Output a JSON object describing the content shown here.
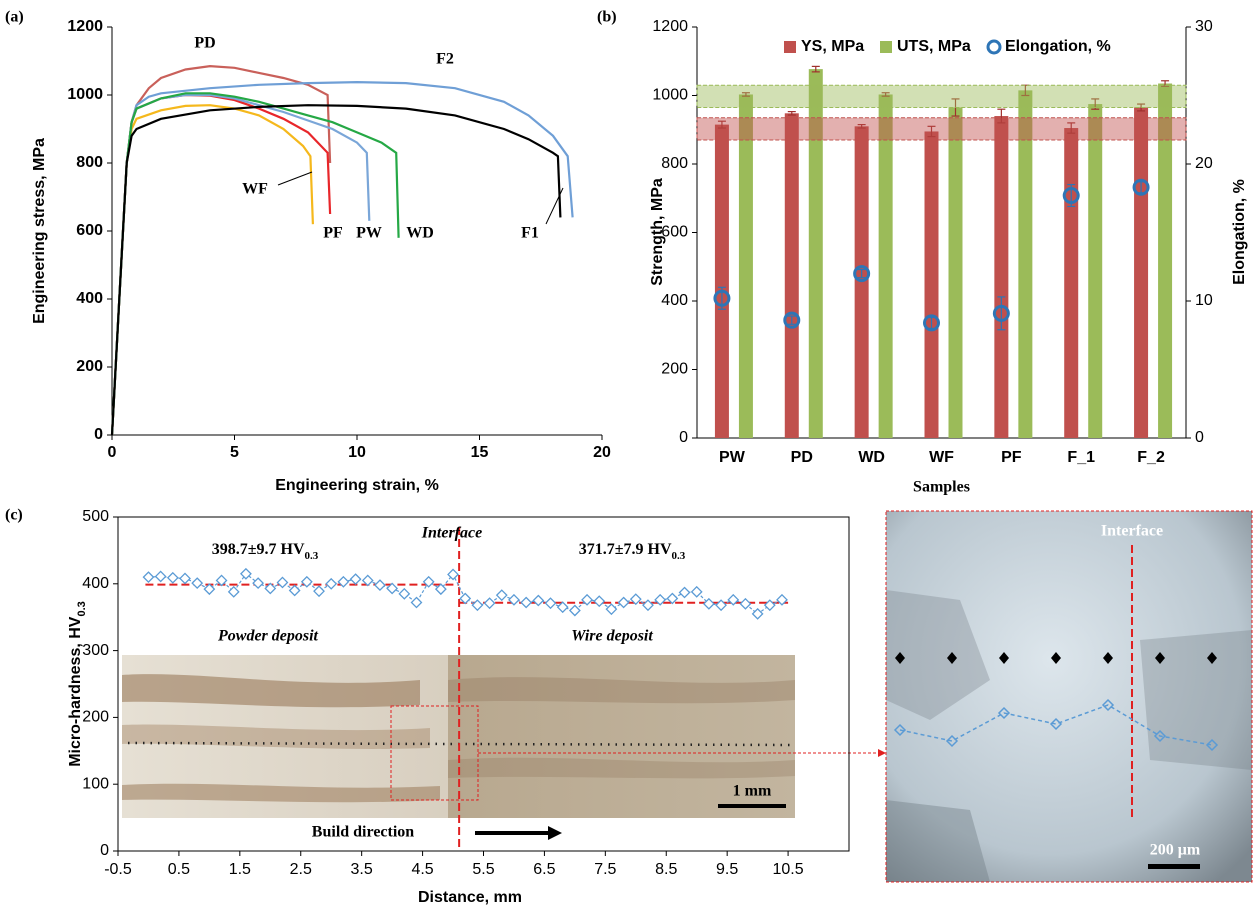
{
  "chart_data": [
    {
      "type": "line",
      "label": "(a)",
      "xlabel": "Engineering strain, %",
      "ylabel": "Engineering stress, MPa",
      "xlim": [
        0,
        20
      ],
      "ylim": [
        0,
        1200
      ],
      "xticks": [
        0,
        5,
        10,
        15,
        20
      ],
      "yticks": [
        0,
        200,
        400,
        600,
        800,
        1000,
        1200
      ],
      "series": [
        {
          "name": "PD",
          "color": "#c9605a",
          "x": [
            0,
            0.3,
            0.6,
            0.8,
            1.0,
            1.5,
            2,
            3,
            4,
            5,
            6,
            7,
            8,
            8.8,
            8.9
          ],
          "values": [
            0,
            400,
            800,
            920,
            970,
            1020,
            1050,
            1075,
            1085,
            1080,
            1065,
            1050,
            1030,
            1000,
            800
          ]
        },
        {
          "name": "F2",
          "color": "#6f9fd6",
          "x": [
            0,
            0.3,
            0.6,
            0.8,
            1,
            1.5,
            2,
            4,
            6,
            8,
            10,
            12,
            14,
            16,
            17,
            18,
            18.6,
            18.8
          ],
          "values": [
            0,
            400,
            800,
            920,
            970,
            995,
            1005,
            1020,
            1030,
            1035,
            1038,
            1035,
            1020,
            980,
            940,
            880,
            820,
            640
          ]
        },
        {
          "name": "WF",
          "color": "#f5b81c",
          "x": [
            0,
            0.3,
            0.6,
            0.8,
            1,
            2,
            3,
            4,
            5,
            6,
            7,
            7.8,
            8.1,
            8.2
          ],
          "values": [
            0,
            400,
            800,
            900,
            930,
            955,
            968,
            970,
            960,
            940,
            900,
            850,
            820,
            620
          ]
        },
        {
          "name": "PF",
          "color": "#e8262a",
          "x": [
            0,
            0.3,
            0.6,
            0.8,
            1,
            2,
            3,
            4,
            5,
            6,
            7,
            8,
            8.8,
            8.9
          ],
          "values": [
            0,
            400,
            800,
            920,
            960,
            990,
            1000,
            998,
            985,
            960,
            930,
            890,
            830,
            650
          ]
        },
        {
          "name": "PW",
          "color": "#7aa6d8",
          "x": [
            0,
            0.3,
            0.6,
            0.8,
            1,
            2,
            3,
            4,
            5,
            6,
            7,
            8,
            9,
            10,
            10.4,
            10.5
          ],
          "values": [
            0,
            400,
            800,
            920,
            960,
            990,
            1000,
            1000,
            990,
            970,
            950,
            925,
            900,
            860,
            830,
            630
          ]
        },
        {
          "name": "WD",
          "color": "#25a845",
          "x": [
            0,
            0.3,
            0.6,
            0.8,
            1,
            2,
            3,
            4,
            5,
            6,
            7,
            8,
            9,
            10,
            11,
            11.6,
            11.7
          ],
          "values": [
            0,
            400,
            800,
            920,
            960,
            990,
            1005,
            1005,
            995,
            980,
            960,
            940,
            920,
            890,
            860,
            830,
            580
          ]
        },
        {
          "name": "F1",
          "color": "#000000",
          "x": [
            0,
            0.3,
            0.6,
            0.8,
            1,
            2,
            4,
            6,
            8,
            10,
            12,
            14,
            16,
            17,
            18,
            18.2,
            18.3
          ],
          "values": [
            0,
            400,
            800,
            880,
            900,
            930,
            955,
            965,
            970,
            968,
            960,
            940,
            900,
            870,
            830,
            820,
            640
          ]
        }
      ]
    },
    {
      "type": "bar",
      "label": "(b)",
      "xlabel": "Samples",
      "ylabel": "Strength, MPa",
      "y2label": "Elongation, %",
      "categories": [
        "PW",
        "PD",
        "WD",
        "WF",
        "PF",
        "F_1",
        "F_2"
      ],
      "ylim": [
        0,
        1200
      ],
      "yticks": [
        0,
        200,
        400,
        600,
        800,
        1000,
        1200
      ],
      "y2lim": [
        0,
        30
      ],
      "y2ticks": [
        0,
        10,
        20,
        30
      ],
      "bands": [
        {
          "color": "#c0504d",
          "range": [
            870,
            935
          ]
        },
        {
          "color": "#9bbb59",
          "range": [
            965,
            1030
          ]
        }
      ],
      "series": [
        {
          "name": "YS, MPa",
          "color": "#c0504d",
          "values": [
            915,
            948,
            910,
            895,
            940,
            905,
            965
          ],
          "errors": [
            10,
            5,
            5,
            15,
            20,
            15,
            10
          ]
        },
        {
          "name": "UTS, MPa",
          "color": "#9bbb59",
          "values": [
            1003,
            1077,
            1003,
            965,
            1015,
            975,
            1035
          ],
          "errors": [
            5,
            8,
            5,
            25,
            15,
            15,
            8
          ]
        },
        {
          "name": "Elongation, %",
          "color": "#2e75b6",
          "axis": "y2",
          "values": [
            10.2,
            8.6,
            12.0,
            8.4,
            9.1,
            17.7,
            18.3
          ],
          "errors": [
            0.8,
            0.3,
            0.3,
            0.4,
            1.2,
            0.8,
            0.4
          ]
        }
      ]
    },
    {
      "type": "scatter",
      "label": "(c)",
      "xlabel": "Distance, mm",
      "ylabel": {
        "text": "Micro-hardness, HV",
        "sub": "0.3"
      },
      "xlim": [
        -0.5,
        11.5
      ],
      "ylim": [
        0,
        500
      ],
      "xticks": [
        -0.5,
        0.5,
        1.5,
        2.5,
        3.5,
        4.5,
        5.5,
        6.5,
        7.5,
        8.5,
        9.5,
        10.5
      ],
      "yticks": [
        0,
        100,
        200,
        300,
        400,
        500
      ],
      "series": [
        {
          "color": "#5b9bd5",
          "x": [
            0,
            0.2,
            0.4,
            0.6,
            0.8,
            1,
            1.2,
            1.4,
            1.6,
            1.8,
            2,
            2.2,
            2.4,
            2.6,
            2.8,
            3,
            3.2,
            3.4,
            3.6,
            3.8,
            4,
            4.2,
            4.4,
            4.6,
            4.8,
            5,
            5.2,
            5.4,
            5.6,
            5.8,
            6,
            6.2,
            6.4,
            6.6,
            6.8,
            7,
            7.2,
            7.4,
            7.6,
            7.8,
            8,
            8.2,
            8.4,
            8.6,
            8.8,
            9,
            9.2,
            9.4,
            9.6,
            9.8,
            10,
            10.2,
            10.4
          ],
          "values": [
            410,
            411,
            409,
            408,
            401,
            392,
            405,
            388,
            415,
            401,
            393,
            402,
            390,
            403,
            389,
            400,
            403,
            407,
            405,
            398,
            393,
            385,
            372,
            403,
            392,
            414,
            378,
            368,
            371,
            383,
            376,
            372,
            375,
            371,
            365,
            360,
            376,
            374,
            362,
            372,
            377,
            368,
            376,
            378,
            387,
            388,
            370,
            368,
            376,
            370,
            355,
            368,
            376
          ]
        }
      ],
      "mean_lines": [
        {
          "value": 398.7,
          "x": [
            -0.05,
            5.1
          ]
        },
        {
          "value": 371.7,
          "x": [
            5.1,
            10.5
          ]
        }
      ],
      "interface_x": 5.1,
      "mean_labels": [
        {
          "text": "398.7±9.7 HV",
          "sub": "0.3"
        },
        {
          "text": "371.7±7.9 HV",
          "sub": "0.3"
        }
      ],
      "annotations": {
        "interface": "Interface",
        "powder": "Powder deposit",
        "wire": "Wire deposit",
        "build_direction": "Build direction",
        "scale_bar": "1 mm",
        "inset_interface": "Interface",
        "inset_scale_bar": "200 μm"
      }
    }
  ]
}
